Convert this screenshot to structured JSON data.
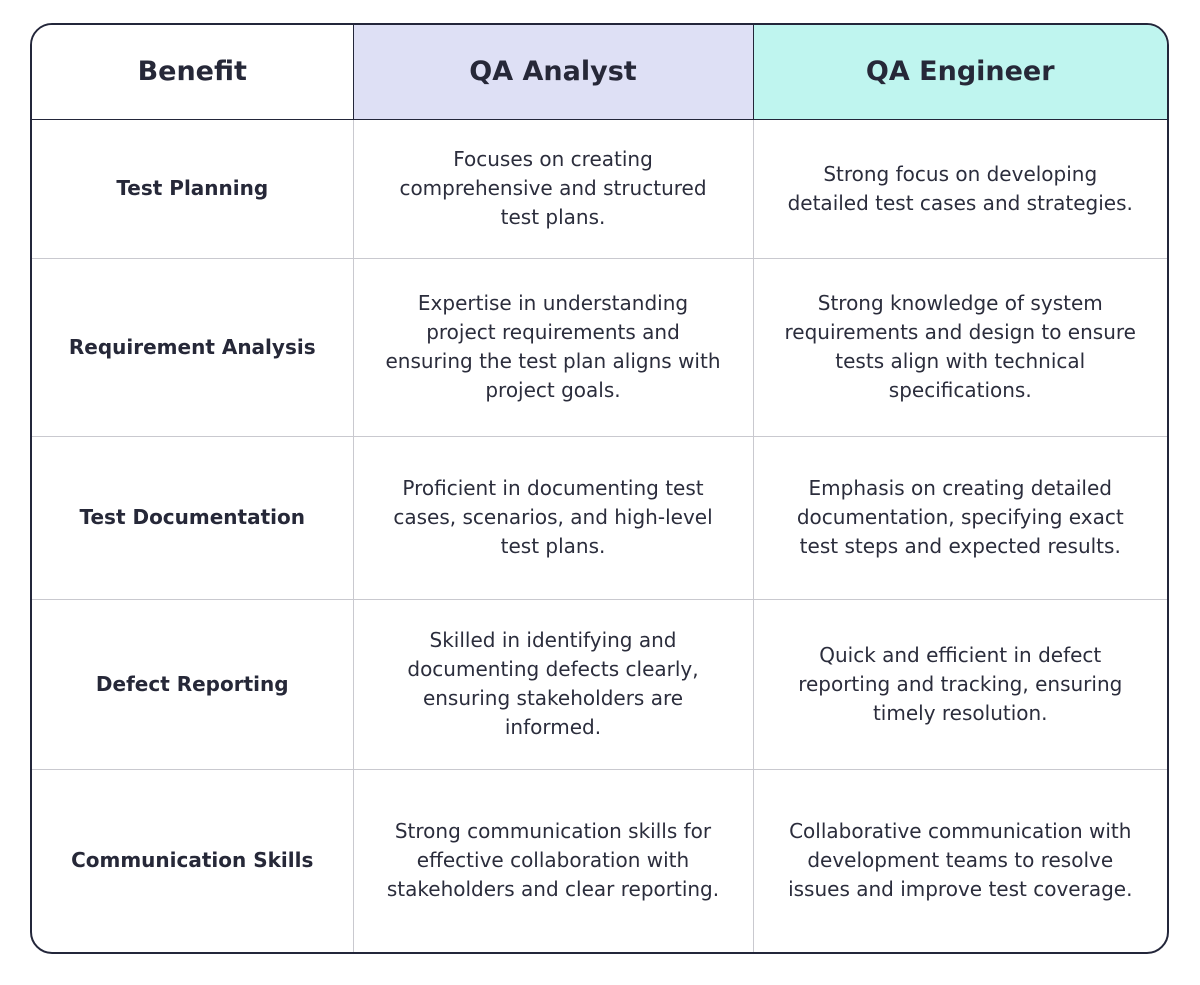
{
  "headers": {
    "benefit": "Benefit",
    "analyst": "QA Analyst",
    "engineer": "QA Engineer"
  },
  "rows": [
    {
      "benefit": "Test Planning",
      "analyst": "Focuses on creating comprehensive and structured test plans.",
      "engineer": "Strong focus on developing detailed test cases and strategies."
    },
    {
      "benefit": "Requirement Analysis",
      "analyst": "Expertise in understanding project requirements and ensuring the test plan aligns with project goals.",
      "engineer": "Strong knowledge of system requirements and design to ensure tests align with technical specifications."
    },
    {
      "benefit": "Test Documentation",
      "analyst": "Proficient in documenting test cases, scenarios, and high-level test plans.",
      "engineer": "Emphasis on creating detailed documentation, specifying exact test steps and expected results."
    },
    {
      "benefit": "Defect Reporting",
      "analyst": "Skilled in identifying and documenting defects clearly, ensuring stakeholders are informed.",
      "engineer": "Quick and efficient in defect reporting and tracking, ensuring timely resolution."
    },
    {
      "benefit": "Communication Skills",
      "analyst": "Strong communication skills for effective collaboration with stakeholders and clear reporting.",
      "engineer": "Collaborative communication with development teams to resolve issues and improve test coverage."
    }
  ],
  "colors": {
    "analyst_header_bg": "#dee0f5",
    "engineer_header_bg": "#bff5ef",
    "border": "#23263a"
  }
}
